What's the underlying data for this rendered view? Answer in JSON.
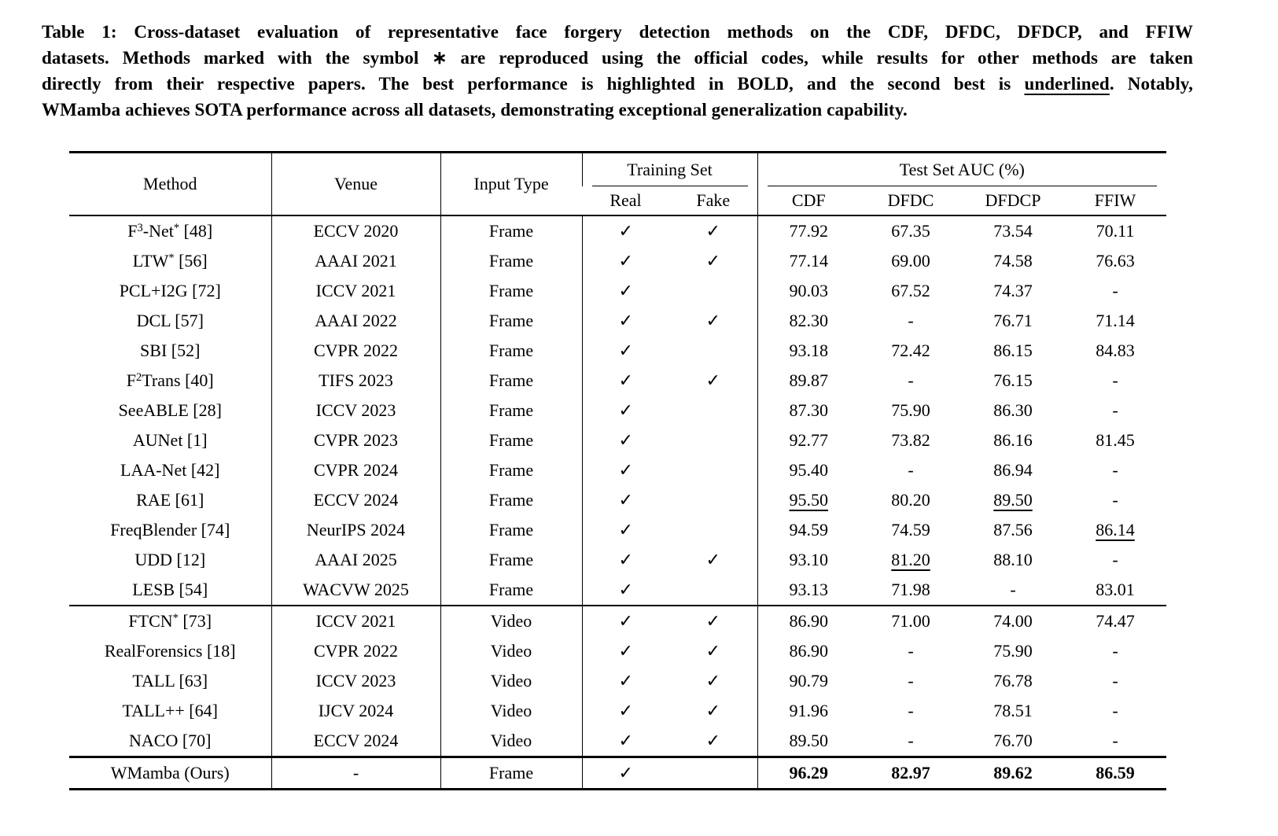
{
  "caption": {
    "lines": [
      [
        {
          "text": "Table 1: Cross-dataset evaluation of representative face forgery detection methods on the CDF, DFDC, DFDCP, and FFIW"
        }
      ],
      [
        {
          "text": "datasets. Methods marked with the symbol ∗ are reproduced using the official codes, while results for other methods are taken"
        }
      ],
      [
        {
          "text": "directly from their respective papers. The best performance is highlighted in BOLD, and the second best is "
        },
        {
          "text": "underlined",
          "underline": true
        },
        {
          "text": ". Notably,"
        }
      ],
      [
        {
          "text": "WMamba achieves SOTA performance across all datasets, demonstrating exceptional generalization capability."
        }
      ]
    ]
  },
  "table": {
    "headers": {
      "method": "Method",
      "venue": "Venue",
      "input_type": "Input Type",
      "training_set": "Training Set",
      "test_set": "Test Set AUC (%)",
      "real": "Real",
      "fake": "Fake",
      "test_cols": [
        "CDF",
        "DFDC",
        "DFDCP",
        "FFIW"
      ]
    },
    "check_glyph": "✓",
    "groups": [
      {
        "name": "frame-methods",
        "rows": [
          {
            "method": "F^{3}-Net^{*} [48]",
            "venue": "ECCV 2020",
            "input": "Frame",
            "real": true,
            "fake": true,
            "scores": [
              {
                "v": "77.92"
              },
              {
                "v": "67.35"
              },
              {
                "v": "73.54"
              },
              {
                "v": "70.11"
              }
            ]
          },
          {
            "method": "LTW^{*} [56]",
            "venue": "AAAI 2021",
            "input": "Frame",
            "real": true,
            "fake": true,
            "scores": [
              {
                "v": "77.14"
              },
              {
                "v": "69.00"
              },
              {
                "v": "74.58"
              },
              {
                "v": "76.63"
              }
            ]
          },
          {
            "method": "PCL+I2G [72]",
            "venue": "ICCV 2021",
            "input": "Frame",
            "real": true,
            "fake": false,
            "scores": [
              {
                "v": "90.03"
              },
              {
                "v": "67.52"
              },
              {
                "v": "74.37"
              },
              {
                "v": "-"
              }
            ]
          },
          {
            "method": "DCL [57]",
            "venue": "AAAI 2022",
            "input": "Frame",
            "real": true,
            "fake": true,
            "scores": [
              {
                "v": "82.30"
              },
              {
                "v": "-"
              },
              {
                "v": "76.71"
              },
              {
                "v": "71.14"
              }
            ]
          },
          {
            "method": "SBI [52]",
            "venue": "CVPR 2022",
            "input": "Frame",
            "real": true,
            "fake": false,
            "scores": [
              {
                "v": "93.18"
              },
              {
                "v": "72.42"
              },
              {
                "v": "86.15"
              },
              {
                "v": "84.83"
              }
            ]
          },
          {
            "method": "F^{2}Trans [40]",
            "venue": "TIFS 2023",
            "input": "Frame",
            "real": true,
            "fake": true,
            "scores": [
              {
                "v": "89.87"
              },
              {
                "v": "-"
              },
              {
                "v": "76.15"
              },
              {
                "v": "-"
              }
            ]
          },
          {
            "method": "SeeABLE [28]",
            "venue": "ICCV 2023",
            "input": "Frame",
            "real": true,
            "fake": false,
            "scores": [
              {
                "v": "87.30"
              },
              {
                "v": "75.90"
              },
              {
                "v": "86.30"
              },
              {
                "v": "-"
              }
            ]
          },
          {
            "method": "AUNet [1]",
            "venue": "CVPR 2023",
            "input": "Frame",
            "real": true,
            "fake": false,
            "scores": [
              {
                "v": "92.77"
              },
              {
                "v": "73.82"
              },
              {
                "v": "86.16"
              },
              {
                "v": "81.45"
              }
            ]
          },
          {
            "method": "LAA-Net [42]",
            "venue": "CVPR 2024",
            "input": "Frame",
            "real": true,
            "fake": false,
            "scores": [
              {
                "v": "95.40"
              },
              {
                "v": "-"
              },
              {
                "v": "86.94"
              },
              {
                "v": "-"
              }
            ]
          },
          {
            "method": "RAE [61]",
            "venue": "ECCV 2024",
            "input": "Frame",
            "real": true,
            "fake": false,
            "scores": [
              {
                "v": "95.50",
                "u": true
              },
              {
                "v": "80.20"
              },
              {
                "v": "89.50",
                "u": true
              },
              {
                "v": "-"
              }
            ]
          },
          {
            "method": "FreqBlender [74]",
            "venue": "NeurIPS 2024",
            "input": "Frame",
            "real": true,
            "fake": false,
            "scores": [
              {
                "v": "94.59"
              },
              {
                "v": "74.59"
              },
              {
                "v": "87.56"
              },
              {
                "v": "86.14",
                "u": true
              }
            ]
          },
          {
            "method": "UDD [12]",
            "venue": "AAAI 2025",
            "input": "Frame",
            "real": true,
            "fake": true,
            "scores": [
              {
                "v": "93.10"
              },
              {
                "v": "81.20",
                "u": true
              },
              {
                "v": "88.10"
              },
              {
                "v": "-"
              }
            ]
          },
          {
            "method": "LESB [54]",
            "venue": "WACVW 2025",
            "input": "Frame",
            "real": true,
            "fake": false,
            "scores": [
              {
                "v": "93.13"
              },
              {
                "v": "71.98"
              },
              {
                "v": "-"
              },
              {
                "v": "83.01"
              }
            ]
          }
        ]
      },
      {
        "name": "video-methods",
        "rows": [
          {
            "method": "FTCN^{*} [73]",
            "venue": "ICCV 2021",
            "input": "Video",
            "real": true,
            "fake": true,
            "scores": [
              {
                "v": "86.90"
              },
              {
                "v": "71.00"
              },
              {
                "v": "74.00"
              },
              {
                "v": "74.47"
              }
            ]
          },
          {
            "method": "RealForensics [18]",
            "venue": "CVPR 2022",
            "input": "Video",
            "real": true,
            "fake": true,
            "scores": [
              {
                "v": "86.90"
              },
              {
                "v": "-"
              },
              {
                "v": "75.90"
              },
              {
                "v": "-"
              }
            ]
          },
          {
            "method": "TALL [63]",
            "venue": "ICCV 2023",
            "input": "Video",
            "real": true,
            "fake": true,
            "scores": [
              {
                "v": "90.79"
              },
              {
                "v": "-"
              },
              {
                "v": "76.78"
              },
              {
                "v": "-"
              }
            ]
          },
          {
            "method": "TALL++ [64]",
            "venue": "IJCV 2024",
            "input": "Video",
            "real": true,
            "fake": true,
            "scores": [
              {
                "v": "91.96"
              },
              {
                "v": "-"
              },
              {
                "v": "78.51"
              },
              {
                "v": "-"
              }
            ]
          },
          {
            "method": "NACO [70]",
            "venue": "ECCV 2024",
            "input": "Video",
            "real": true,
            "fake": true,
            "scores": [
              {
                "v": "89.50"
              },
              {
                "v": "-"
              },
              {
                "v": "76.70"
              },
              {
                "v": "-"
              }
            ]
          }
        ]
      },
      {
        "name": "ours",
        "rows": [
          {
            "method": "WMamba (Ours)",
            "venue": "-",
            "input": "Frame",
            "real": true,
            "fake": false,
            "scores": [
              {
                "v": "96.29",
                "b": true
              },
              {
                "v": "82.97",
                "b": true
              },
              {
                "v": "89.62",
                "b": true
              },
              {
                "v": "86.59",
                "b": true
              }
            ]
          }
        ]
      }
    ]
  }
}
